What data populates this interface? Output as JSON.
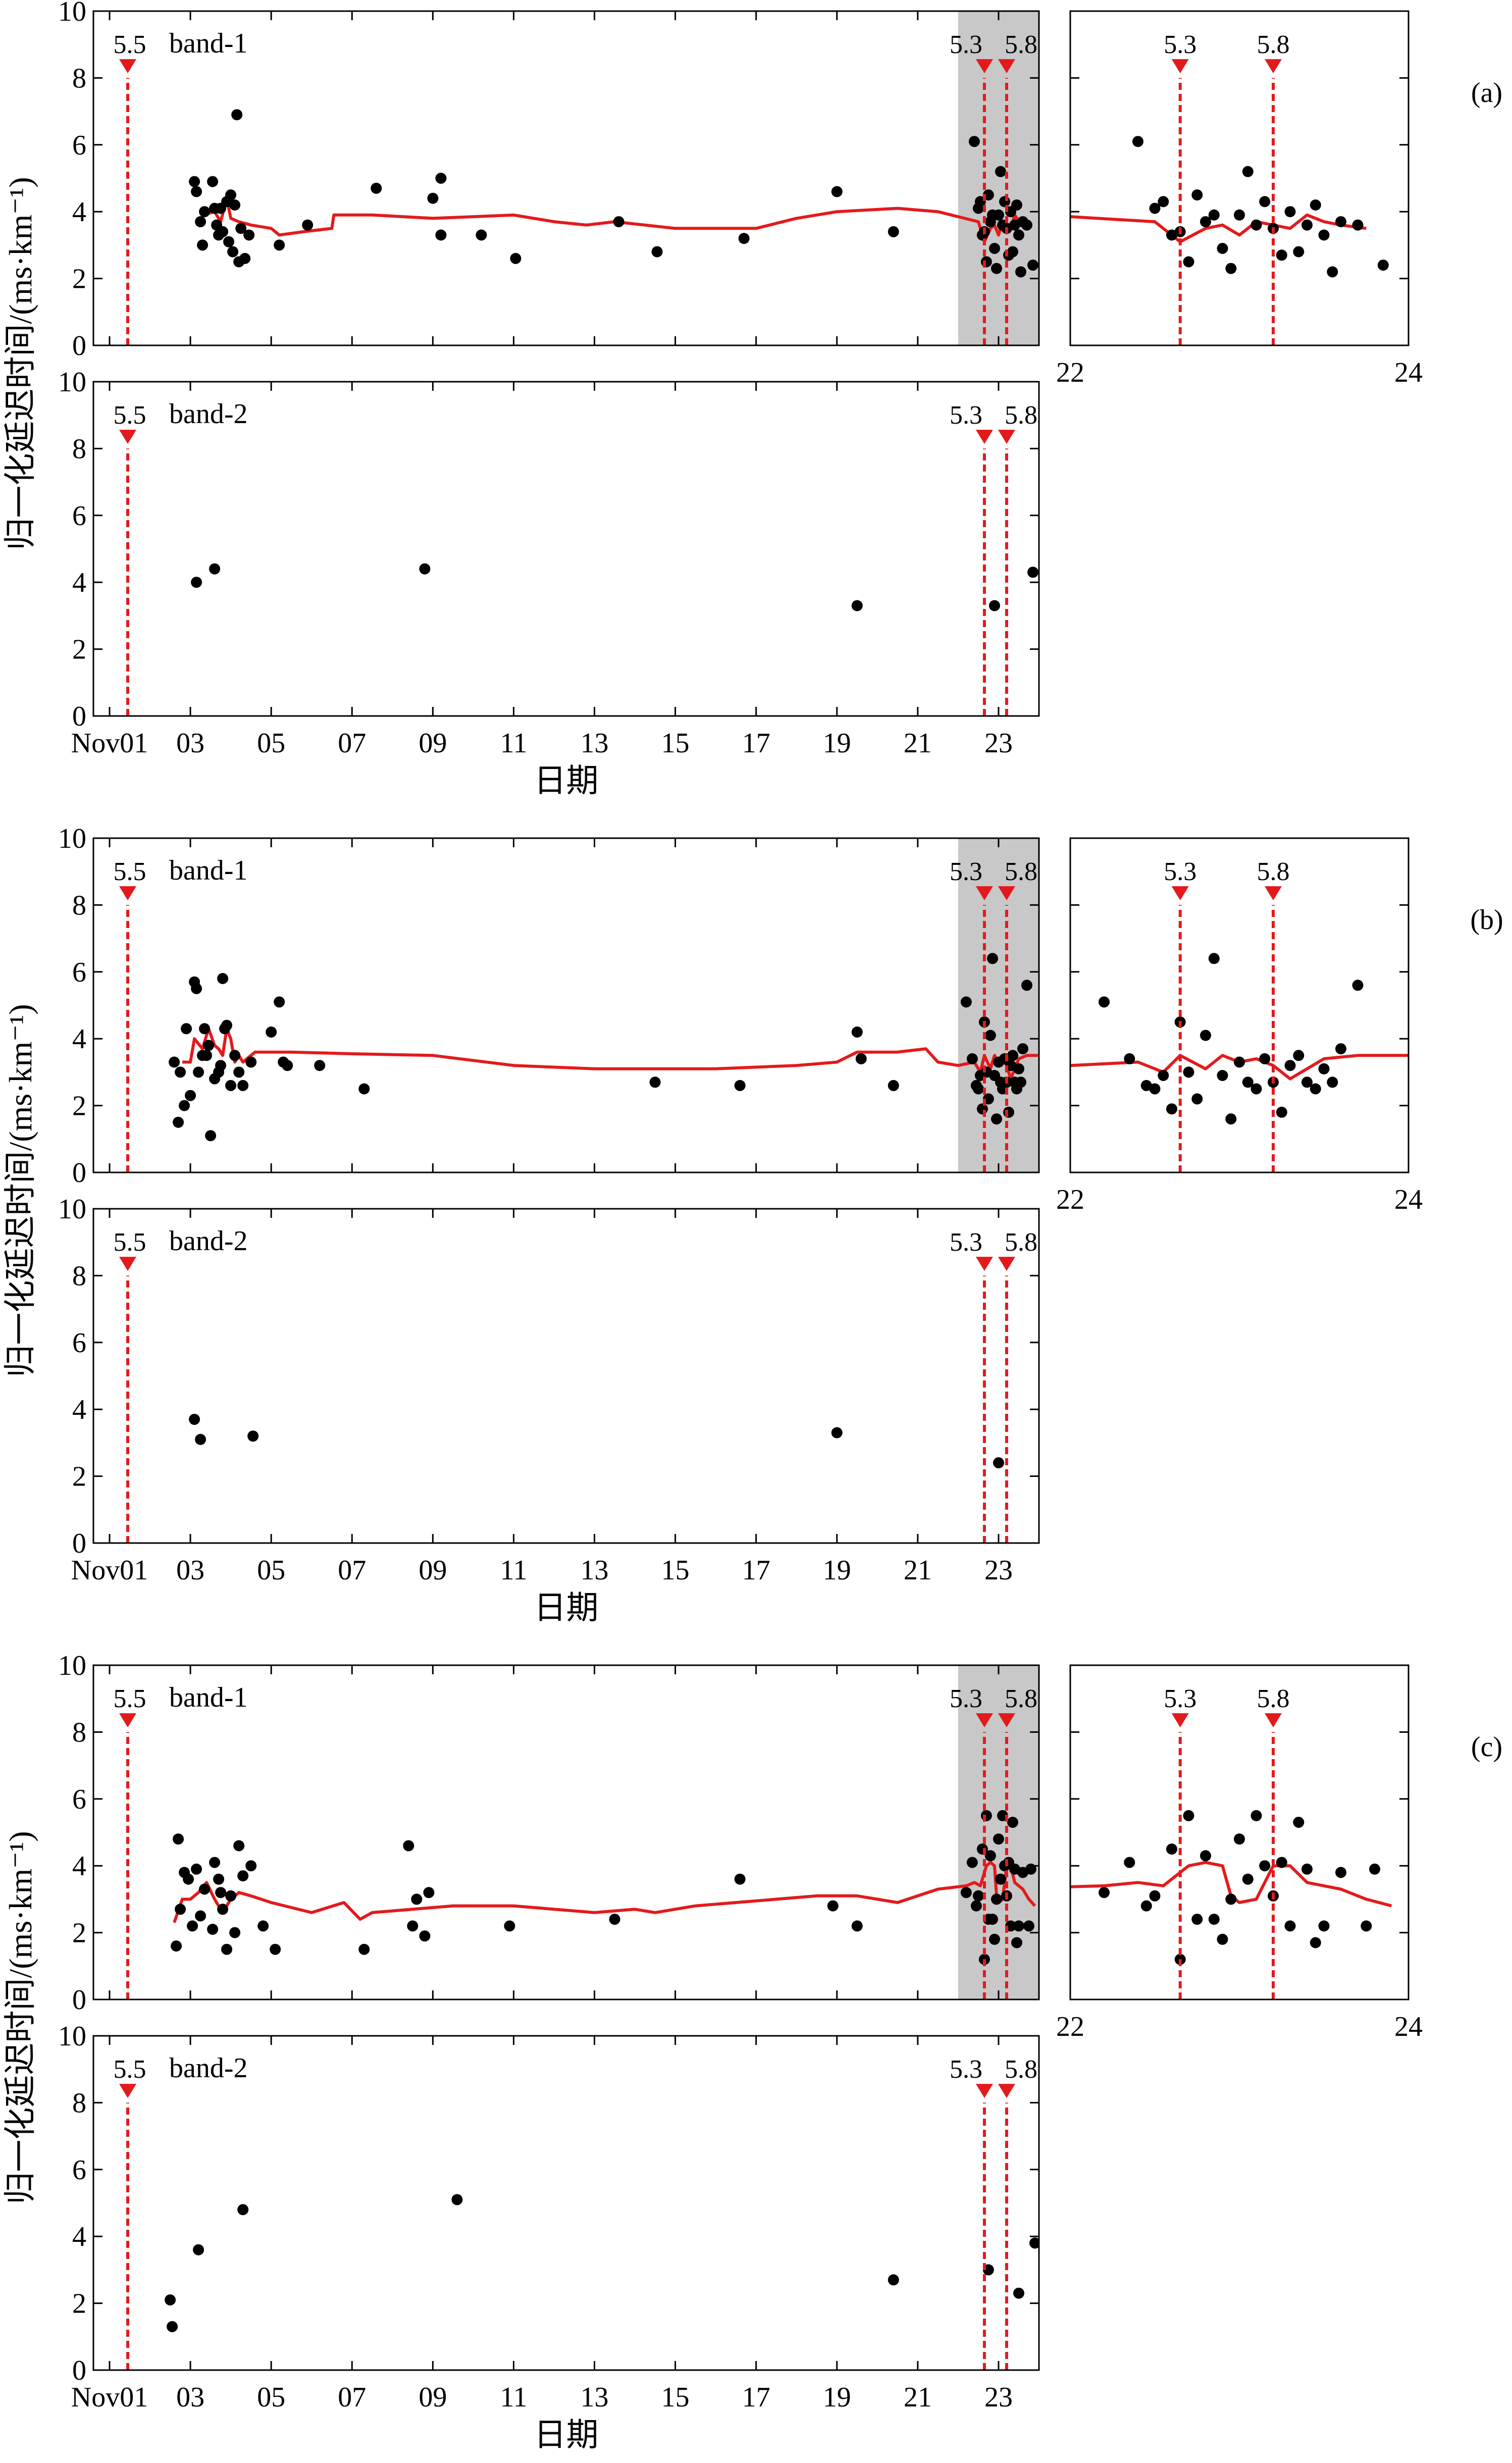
{
  "figure": {
    "ylabel": "归一化延迟时间/(ms·km⁻¹)",
    "xlabel": "日期",
    "main_x_ticks": [
      {
        "day": 1,
        "label": "Nov01"
      },
      {
        "day": 3,
        "label": "03"
      },
      {
        "day": 5,
        "label": "05"
      },
      {
        "day": 7,
        "label": "07"
      },
      {
        "day": 9,
        "label": "09"
      },
      {
        "day": 11,
        "label": "11"
      },
      {
        "day": 13,
        "label": "13"
      },
      {
        "day": 15,
        "label": "15"
      },
      {
        "day": 17,
        "label": "17"
      },
      {
        "day": 19,
        "label": "19"
      },
      {
        "day": 21,
        "label": "21"
      },
      {
        "day": 23,
        "label": "23"
      }
    ],
    "zoom_x_ticks": [
      {
        "day": 22,
        "label": "22"
      },
      {
        "day": 24,
        "label": "24"
      }
    ],
    "y_ticks": [
      0,
      2,
      4,
      6,
      8,
      10
    ],
    "colors": {
      "trend": "#e31a1c",
      "event": "#e31a1c",
      "points": "#000000",
      "shade": "#c8c8c8"
    },
    "events": [
      {
        "day": 1.45,
        "mag": "5.5"
      },
      {
        "day": 22.65,
        "mag": "5.3"
      },
      {
        "day": 23.2,
        "mag": "5.8"
      }
    ],
    "shade_range": [
      22.0,
      24.0
    ]
  },
  "chart_data": [
    {
      "panel": "(a)",
      "band": "band-1",
      "type": "scatter",
      "has_zoom": true,
      "xlim": [
        0.6,
        24.0
      ],
      "ylim": [
        0,
        10
      ],
      "points": [
        [
          3.1,
          4.9
        ],
        [
          3.15,
          4.6
        ],
        [
          3.25,
          3.7
        ],
        [
          3.3,
          3.0
        ],
        [
          3.35,
          4.0
        ],
        [
          3.55,
          4.9
        ],
        [
          3.6,
          4.1
        ],
        [
          3.65,
          3.6
        ],
        [
          3.7,
          3.3
        ],
        [
          3.75,
          4.1
        ],
        [
          3.8,
          3.4
        ],
        [
          3.9,
          4.3
        ],
        [
          3.95,
          3.1
        ],
        [
          4.0,
          4.5
        ],
        [
          4.05,
          2.8
        ],
        [
          4.1,
          4.2
        ],
        [
          4.15,
          6.9
        ],
        [
          4.2,
          2.5
        ],
        [
          4.25,
          3.5
        ],
        [
          4.35,
          2.6
        ],
        [
          4.45,
          3.3
        ],
        [
          5.2,
          3.0
        ],
        [
          5.9,
          3.6
        ],
        [
          7.6,
          4.7
        ],
        [
          9.0,
          4.4
        ],
        [
          9.2,
          3.3
        ],
        [
          9.2,
          5.0
        ],
        [
          10.2,
          3.3
        ],
        [
          11.05,
          2.6
        ],
        [
          13.6,
          3.7
        ],
        [
          14.55,
          2.8
        ],
        [
          16.7,
          3.2
        ],
        [
          19.0,
          4.6
        ],
        [
          20.4,
          3.4
        ],
        [
          22.4,
          6.1
        ],
        [
          22.5,
          4.1
        ],
        [
          22.55,
          4.3
        ],
        [
          22.6,
          3.3
        ],
        [
          22.65,
          3.4
        ],
        [
          22.7,
          2.5
        ],
        [
          22.75,
          4.5
        ],
        [
          22.8,
          3.7
        ],
        [
          22.85,
          3.9
        ],
        [
          22.9,
          2.9
        ],
        [
          22.95,
          2.3
        ],
        [
          23.0,
          3.9
        ],
        [
          23.05,
          5.2
        ],
        [
          23.1,
          3.6
        ],
        [
          23.15,
          4.3
        ],
        [
          23.2,
          3.5
        ],
        [
          23.25,
          2.7
        ],
        [
          23.3,
          4.0
        ],
        [
          23.35,
          2.8
        ],
        [
          23.4,
          3.6
        ],
        [
          23.45,
          4.2
        ],
        [
          23.5,
          3.3
        ],
        [
          23.55,
          2.2
        ],
        [
          23.6,
          3.7
        ],
        [
          23.7,
          3.6
        ],
        [
          23.85,
          2.4
        ]
      ],
      "trend": [
        [
          3.3,
          3.9
        ],
        [
          3.6,
          4.0
        ],
        [
          3.75,
          3.7
        ],
        [
          3.9,
          4.4
        ],
        [
          4.0,
          3.8
        ],
        [
          4.2,
          3.7
        ],
        [
          4.5,
          3.6
        ],
        [
          5.0,
          3.5
        ],
        [
          5.2,
          3.3
        ],
        [
          5.8,
          3.4
        ],
        [
          6.5,
          3.5
        ],
        [
          6.55,
          3.9
        ],
        [
          7.5,
          3.9
        ],
        [
          9.0,
          3.8
        ],
        [
          11.0,
          3.9
        ],
        [
          12.0,
          3.7
        ],
        [
          12.8,
          3.6
        ],
        [
          13.5,
          3.7
        ],
        [
          15.0,
          3.5
        ],
        [
          17.0,
          3.5
        ],
        [
          18.0,
          3.8
        ],
        [
          19.0,
          4.0
        ],
        [
          20.5,
          4.1
        ],
        [
          21.5,
          4.0
        ],
        [
          22.5,
          3.7
        ],
        [
          22.65,
          3.1
        ],
        [
          22.8,
          3.5
        ],
        [
          22.9,
          3.6
        ],
        [
          23.0,
          3.3
        ],
        [
          23.1,
          3.7
        ],
        [
          23.2,
          3.6
        ],
        [
          23.3,
          3.5
        ],
        [
          23.4,
          3.9
        ],
        [
          23.5,
          3.7
        ],
        [
          23.6,
          3.6
        ],
        [
          23.75,
          3.5
        ]
      ]
    },
    {
      "panel": "(a)",
      "band": "band-2",
      "type": "scatter",
      "has_zoom": false,
      "xlim": [
        0.6,
        24.0
      ],
      "ylim": [
        0,
        10
      ],
      "points": [
        [
          3.15,
          4.0
        ],
        [
          3.6,
          4.4
        ],
        [
          8.8,
          4.4
        ],
        [
          19.5,
          3.3
        ],
        [
          22.9,
          3.3
        ],
        [
          23.85,
          4.3
        ]
      ],
      "trend": []
    },
    {
      "panel": "(b)",
      "band": "band-1",
      "type": "scatter",
      "has_zoom": true,
      "xlim": [
        0.6,
        24.0
      ],
      "ylim": [
        0,
        10
      ],
      "points": [
        [
          2.6,
          3.3
        ],
        [
          2.7,
          1.5
        ],
        [
          2.75,
          3.0
        ],
        [
          2.85,
          2.0
        ],
        [
          2.9,
          4.3
        ],
        [
          3.0,
          2.3
        ],
        [
          3.1,
          5.7
        ],
        [
          3.15,
          5.5
        ],
        [
          3.2,
          3.0
        ],
        [
          3.3,
          3.5
        ],
        [
          3.35,
          4.3
        ],
        [
          3.4,
          3.5
        ],
        [
          3.45,
          3.8
        ],
        [
          3.5,
          1.1
        ],
        [
          3.6,
          2.8
        ],
        [
          3.7,
          3.0
        ],
        [
          3.75,
          3.2
        ],
        [
          3.8,
          5.8
        ],
        [
          3.85,
          4.3
        ],
        [
          3.9,
          4.4
        ],
        [
          4.0,
          2.6
        ],
        [
          4.1,
          3.5
        ],
        [
          4.2,
          3.0
        ],
        [
          4.3,
          2.6
        ],
        [
          4.5,
          3.3
        ],
        [
          5.0,
          4.2
        ],
        [
          5.2,
          5.1
        ],
        [
          5.3,
          3.3
        ],
        [
          5.4,
          3.2
        ],
        [
          6.2,
          3.2
        ],
        [
          7.3,
          2.5
        ],
        [
          14.5,
          2.7
        ],
        [
          16.6,
          2.6
        ],
        [
          19.5,
          4.2
        ],
        [
          19.6,
          3.4
        ],
        [
          20.4,
          2.6
        ],
        [
          22.2,
          5.1
        ],
        [
          22.35,
          3.4
        ],
        [
          22.45,
          2.6
        ],
        [
          22.5,
          2.5
        ],
        [
          22.55,
          2.9
        ],
        [
          22.6,
          1.9
        ],
        [
          22.65,
          4.5
        ],
        [
          22.7,
          3.0
        ],
        [
          22.75,
          2.2
        ],
        [
          22.8,
          4.1
        ],
        [
          22.85,
          6.4
        ],
        [
          22.9,
          2.9
        ],
        [
          22.95,
          1.6
        ],
        [
          23.0,
          3.3
        ],
        [
          23.05,
          2.7
        ],
        [
          23.1,
          2.5
        ],
        [
          23.15,
          3.4
        ],
        [
          23.2,
          2.7
        ],
        [
          23.25,
          1.8
        ],
        [
          23.3,
          3.2
        ],
        [
          23.35,
          3.5
        ],
        [
          23.4,
          2.7
        ],
        [
          23.45,
          2.5
        ],
        [
          23.5,
          3.1
        ],
        [
          23.55,
          2.7
        ],
        [
          23.6,
          3.7
        ],
        [
          23.7,
          5.6
        ]
      ],
      "trend": [
        [
          2.8,
          3.3
        ],
        [
          3.0,
          3.3
        ],
        [
          3.1,
          4.0
        ],
        [
          3.3,
          3.7
        ],
        [
          3.45,
          4.3
        ],
        [
          3.6,
          3.8
        ],
        [
          3.7,
          3.7
        ],
        [
          3.8,
          3.5
        ],
        [
          3.9,
          4.3
        ],
        [
          4.0,
          4.0
        ],
        [
          4.1,
          3.3
        ],
        [
          4.2,
          3.5
        ],
        [
          4.3,
          3.3
        ],
        [
          4.6,
          3.6
        ],
        [
          5.5,
          3.6
        ],
        [
          7.0,
          3.55
        ],
        [
          9.0,
          3.5
        ],
        [
          11.0,
          3.2
        ],
        [
          12.0,
          3.15
        ],
        [
          13.0,
          3.1
        ],
        [
          14.0,
          3.1
        ],
        [
          16.0,
          3.1
        ],
        [
          18.0,
          3.2
        ],
        [
          19.0,
          3.3
        ],
        [
          19.5,
          3.6
        ],
        [
          20.5,
          3.6
        ],
        [
          21.2,
          3.7
        ],
        [
          21.5,
          3.3
        ],
        [
          22.0,
          3.2
        ],
        [
          22.4,
          3.3
        ],
        [
          22.55,
          3.0
        ],
        [
          22.65,
          3.5
        ],
        [
          22.8,
          3.1
        ],
        [
          22.9,
          3.5
        ],
        [
          23.0,
          3.3
        ],
        [
          23.1,
          3.4
        ],
        [
          23.2,
          3.2
        ],
        [
          23.3,
          2.8
        ],
        [
          23.5,
          3.4
        ],
        [
          23.7,
          3.5
        ],
        [
          24.0,
          3.5
        ]
      ]
    },
    {
      "panel": "(b)",
      "band": "band-2",
      "type": "scatter",
      "has_zoom": false,
      "xlim": [
        0.6,
        24.0
      ],
      "ylim": [
        0,
        10
      ],
      "points": [
        [
          3.1,
          3.7
        ],
        [
          3.25,
          3.1
        ],
        [
          4.55,
          3.2
        ],
        [
          19.0,
          3.3
        ],
        [
          23.0,
          2.4
        ]
      ],
      "trend": []
    },
    {
      "panel": "(c)",
      "band": "band-1",
      "type": "scatter",
      "has_zoom": true,
      "xlim": [
        0.6,
        24.0
      ],
      "ylim": [
        0,
        10
      ],
      "points": [
        [
          2.65,
          1.6
        ],
        [
          2.7,
          4.8
        ],
        [
          2.75,
          2.7
        ],
        [
          2.85,
          3.8
        ],
        [
          2.95,
          3.6
        ],
        [
          3.05,
          2.2
        ],
        [
          3.15,
          3.9
        ],
        [
          3.25,
          2.5
        ],
        [
          3.35,
          3.3
        ],
        [
          3.55,
          2.1
        ],
        [
          3.6,
          4.1
        ],
        [
          3.7,
          3.6
        ],
        [
          3.75,
          3.2
        ],
        [
          3.8,
          2.7
        ],
        [
          3.9,
          1.5
        ],
        [
          4.0,
          3.1
        ],
        [
          4.1,
          2.0
        ],
        [
          4.2,
          4.6
        ],
        [
          4.3,
          3.7
        ],
        [
          4.5,
          4.0
        ],
        [
          4.8,
          2.2
        ],
        [
          5.1,
          1.5
        ],
        [
          7.3,
          1.5
        ],
        [
          8.4,
          4.6
        ],
        [
          8.5,
          2.2
        ],
        [
          8.6,
          3.0
        ],
        [
          8.8,
          1.9
        ],
        [
          8.9,
          3.2
        ],
        [
          10.9,
          2.2
        ],
        [
          13.5,
          2.4
        ],
        [
          16.6,
          3.6
        ],
        [
          18.9,
          2.8
        ],
        [
          19.5,
          2.2
        ],
        [
          22.2,
          3.2
        ],
        [
          22.35,
          4.1
        ],
        [
          22.45,
          2.8
        ],
        [
          22.5,
          3.1
        ],
        [
          22.6,
          4.5
        ],
        [
          22.65,
          1.2
        ],
        [
          22.7,
          5.5
        ],
        [
          22.75,
          2.4
        ],
        [
          22.8,
          4.3
        ],
        [
          22.85,
          2.4
        ],
        [
          22.9,
          1.8
        ],
        [
          22.95,
          3.0
        ],
        [
          23.0,
          4.8
        ],
        [
          23.05,
          3.6
        ],
        [
          23.1,
          5.5
        ],
        [
          23.15,
          4.0
        ],
        [
          23.2,
          3.1
        ],
        [
          23.25,
          4.1
        ],
        [
          23.3,
          2.2
        ],
        [
          23.35,
          5.3
        ],
        [
          23.4,
          3.9
        ],
        [
          23.45,
          1.7
        ],
        [
          23.5,
          2.2
        ],
        [
          23.6,
          3.8
        ],
        [
          23.75,
          2.2
        ],
        [
          23.8,
          3.9
        ]
      ],
      "trend": [
        [
          2.6,
          2.3
        ],
        [
          2.8,
          3.0
        ],
        [
          3.0,
          3.0
        ],
        [
          3.2,
          3.2
        ],
        [
          3.4,
          3.5
        ],
        [
          3.6,
          3.0
        ],
        [
          3.8,
          2.6
        ],
        [
          4.0,
          3.0
        ],
        [
          4.2,
          3.2
        ],
        [
          4.5,
          3.1
        ],
        [
          5.0,
          2.9
        ],
        [
          6.0,
          2.6
        ],
        [
          6.8,
          2.9
        ],
        [
          7.2,
          2.4
        ],
        [
          7.5,
          2.6
        ],
        [
          8.5,
          2.7
        ],
        [
          9.5,
          2.8
        ],
        [
          11.0,
          2.8
        ],
        [
          13.0,
          2.6
        ],
        [
          14.0,
          2.7
        ],
        [
          14.5,
          2.6
        ],
        [
          15.5,
          2.8
        ],
        [
          16.5,
          2.9
        ],
        [
          17.5,
          3.0
        ],
        [
          18.5,
          3.1
        ],
        [
          19.5,
          3.1
        ],
        [
          20.5,
          2.9
        ],
        [
          21.5,
          3.3
        ],
        [
          22.2,
          3.4
        ],
        [
          22.4,
          3.5
        ],
        [
          22.55,
          3.4
        ],
        [
          22.7,
          4.0
        ],
        [
          22.8,
          4.1
        ],
        [
          22.9,
          4.0
        ],
        [
          22.95,
          3.1
        ],
        [
          23.0,
          2.9
        ],
        [
          23.1,
          3.0
        ],
        [
          23.2,
          4.0
        ],
        [
          23.3,
          4.0
        ],
        [
          23.4,
          3.5
        ],
        [
          23.5,
          3.4
        ],
        [
          23.6,
          3.3
        ],
        [
          23.75,
          3.0
        ],
        [
          23.9,
          2.8
        ]
      ]
    },
    {
      "panel": "(c)",
      "band": "band-2",
      "type": "scatter",
      "has_zoom": false,
      "xlim": [
        0.6,
        24.0
      ],
      "ylim": [
        0,
        10
      ],
      "points": [
        [
          2.5,
          2.1
        ],
        [
          2.55,
          1.3
        ],
        [
          3.2,
          3.6
        ],
        [
          4.3,
          4.8
        ],
        [
          9.6,
          5.1
        ],
        [
          20.4,
          2.7
        ],
        [
          22.75,
          3.0
        ],
        [
          23.5,
          2.3
        ],
        [
          23.9,
          3.8
        ]
      ],
      "trend": []
    }
  ]
}
